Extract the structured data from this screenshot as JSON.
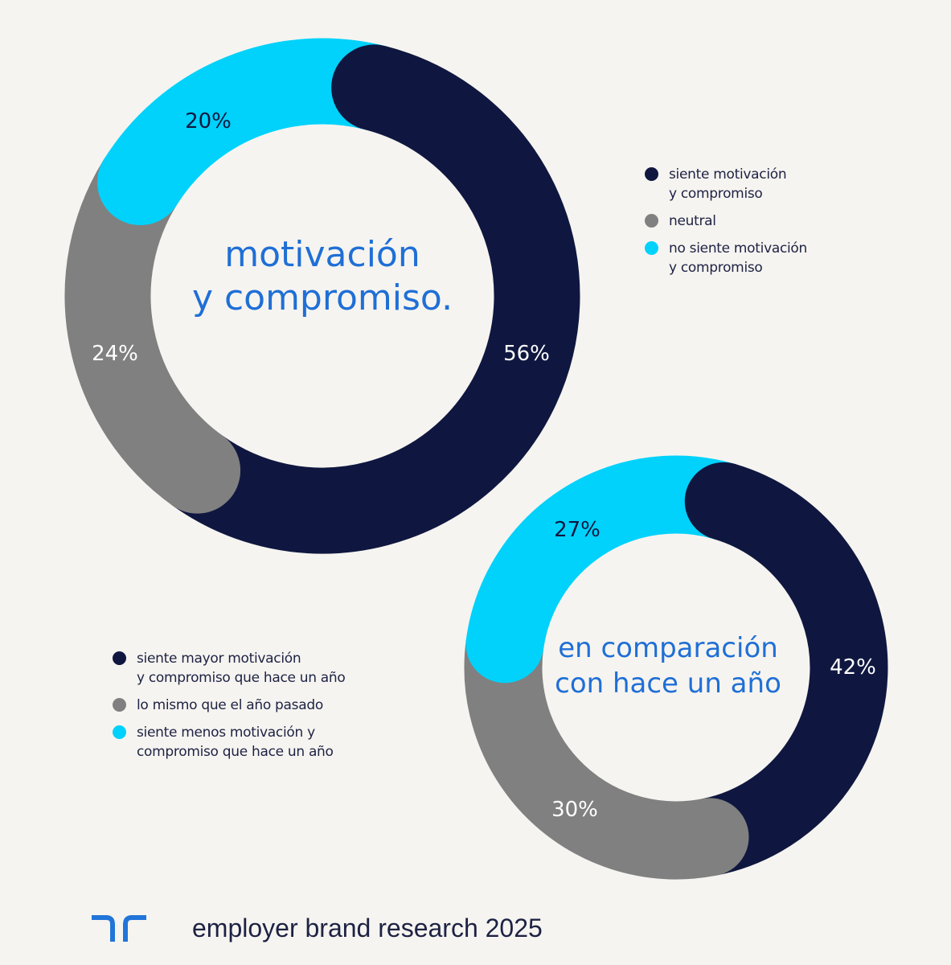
{
  "colors": {
    "background": "#f6f4f0",
    "navy": "#0f1740",
    "gray": "#808080",
    "cyan": "#00d2fb",
    "title_blue": "#1f6fd6",
    "text_dark": "#1d2244"
  },
  "chart_data": [
    {
      "type": "pie",
      "variant": "donut",
      "title": "motivación y compromiso.",
      "categories": [
        "siente motivación y compromiso",
        "neutral",
        "no siente motivación y compromiso"
      ],
      "values": [
        56,
        24,
        20
      ],
      "labels": [
        "56%",
        "24%",
        "20%"
      ],
      "colors": [
        "#0f1740",
        "#808080",
        "#00d2fb"
      ],
      "legend_position": "right"
    },
    {
      "type": "pie",
      "variant": "donut",
      "title": "en comparación con hace un año",
      "categories": [
        "siente mayor motivación y compromiso que hace un año",
        "lo mismo que el año pasado",
        "siente menos motivación y compromiso que hace un año"
      ],
      "values": [
        42,
        30,
        27
      ],
      "labels": [
        "42%",
        "30%",
        "27%"
      ],
      "colors": [
        "#0f1740",
        "#808080",
        "#00d2fb"
      ],
      "legend_position": "left"
    }
  ],
  "chart1": {
    "title_line1": "motivación",
    "title_line2": "y compromiso.",
    "labels": {
      "navy": "56%",
      "gray": "24%",
      "cyan": "20%"
    },
    "legend": [
      {
        "text": "siente motivación\ny compromiso",
        "color": "#0f1740"
      },
      {
        "text": "neutral",
        "color": "#808080"
      },
      {
        "text": "no siente motivación\ny compromiso",
        "color": "#00d2fb"
      }
    ]
  },
  "chart2": {
    "title_line1": "en comparación",
    "title_line2": "con hace un año",
    "labels": {
      "navy": "42%",
      "gray": "30%",
      "cyan": "27%"
    },
    "legend": [
      {
        "text": "siente mayor motivación\ny compromiso que hace un año",
        "color": "#0f1740"
      },
      {
        "text": "lo mismo que el año pasado",
        "color": "#808080"
      },
      {
        "text": "siente menos motivación y\ncompromiso que hace un año",
        "color": "#00d2fb"
      }
    ]
  },
  "footer": {
    "logo_icon": "randstad-logo-icon",
    "text": "employer brand research 2025"
  }
}
